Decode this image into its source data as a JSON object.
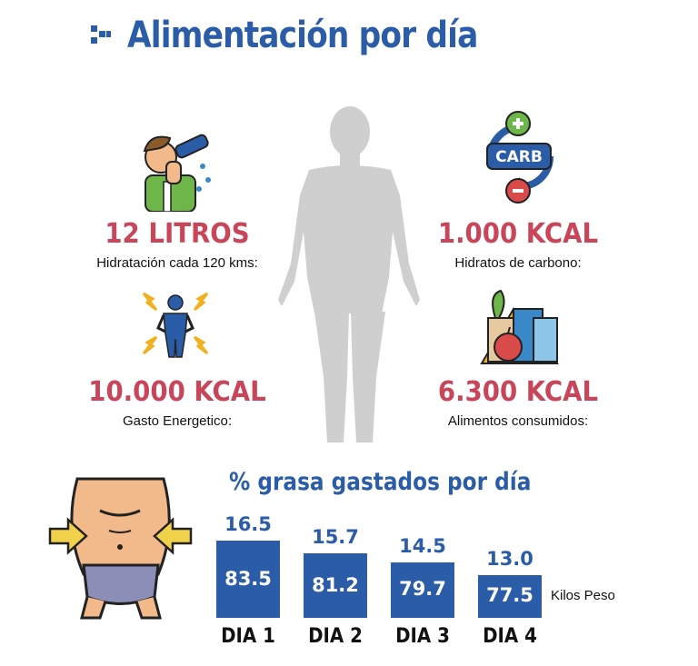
{
  "title": "Alimentación por día",
  "stats": [
    {
      "value": "12 LITROS",
      "label": "Hidratación cada 120 kms:",
      "icon": "drinking-person-icon"
    },
    {
      "value": "1.000 KCAL",
      "label": "Hidratos de carbono:",
      "icon": "carb-cycle-icon"
    },
    {
      "value": "10.000 KCAL",
      "label": "Gasto Energetico:",
      "icon": "energy-person-icon"
    },
    {
      "value": "6.300 KCAL",
      "label": "Alimentos consumidos:",
      "icon": "groceries-icon"
    }
  ],
  "carb_icon_text": "CARB",
  "colors": {
    "accent": "#2a5ca7",
    "stat": "#c9465a",
    "silhouette": "#cfcfcf"
  },
  "chart_data": {
    "type": "bar",
    "title": "% grasa gastados por día",
    "categories": [
      "DIA 1",
      "DIA 2",
      "DIA 3",
      "DIA 4"
    ],
    "values": [
      83.5,
      81.2,
      79.7,
      77.5
    ],
    "top_labels": [
      "16.5",
      "15.7",
      "14.5",
      "13.0"
    ],
    "value_label": "Kilos Peso",
    "bar_color": "#2a5ca7"
  }
}
